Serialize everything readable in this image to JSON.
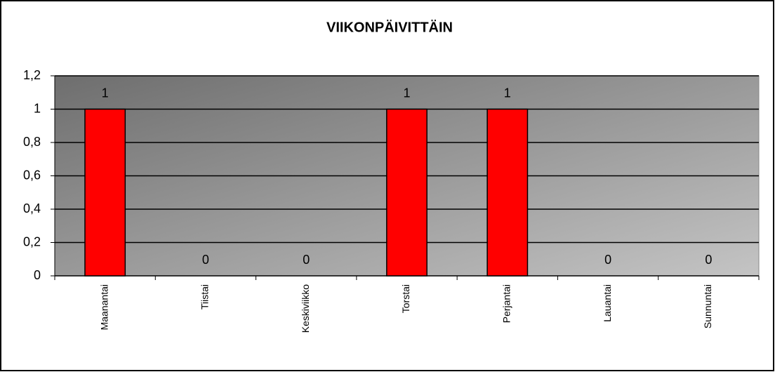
{
  "chart_data": {
    "type": "bar",
    "title": "VIIKONPÄIVITTÄIN",
    "categories": [
      "Maanantai",
      "Tiistai",
      "Keskiviikko",
      "Torstai",
      "Perjantai",
      "Lauantai",
      "Sunnuntai"
    ],
    "values": [
      1,
      0,
      0,
      1,
      1,
      0,
      0
    ],
    "color": "#ff0000",
    "ylim": [
      0,
      1.2
    ],
    "yticks": [
      0,
      {
        "value": 0.2,
        "label": "0,2"
      },
      {
        "value": 0.4,
        "label": "0,4"
      },
      {
        "value": 0.6,
        "label": "0,6"
      },
      {
        "value": 0.8,
        "label": "0,8"
      },
      1,
      {
        "value": 1.2,
        "label": "1,2"
      }
    ],
    "grid": true,
    "data_labels": true
  }
}
